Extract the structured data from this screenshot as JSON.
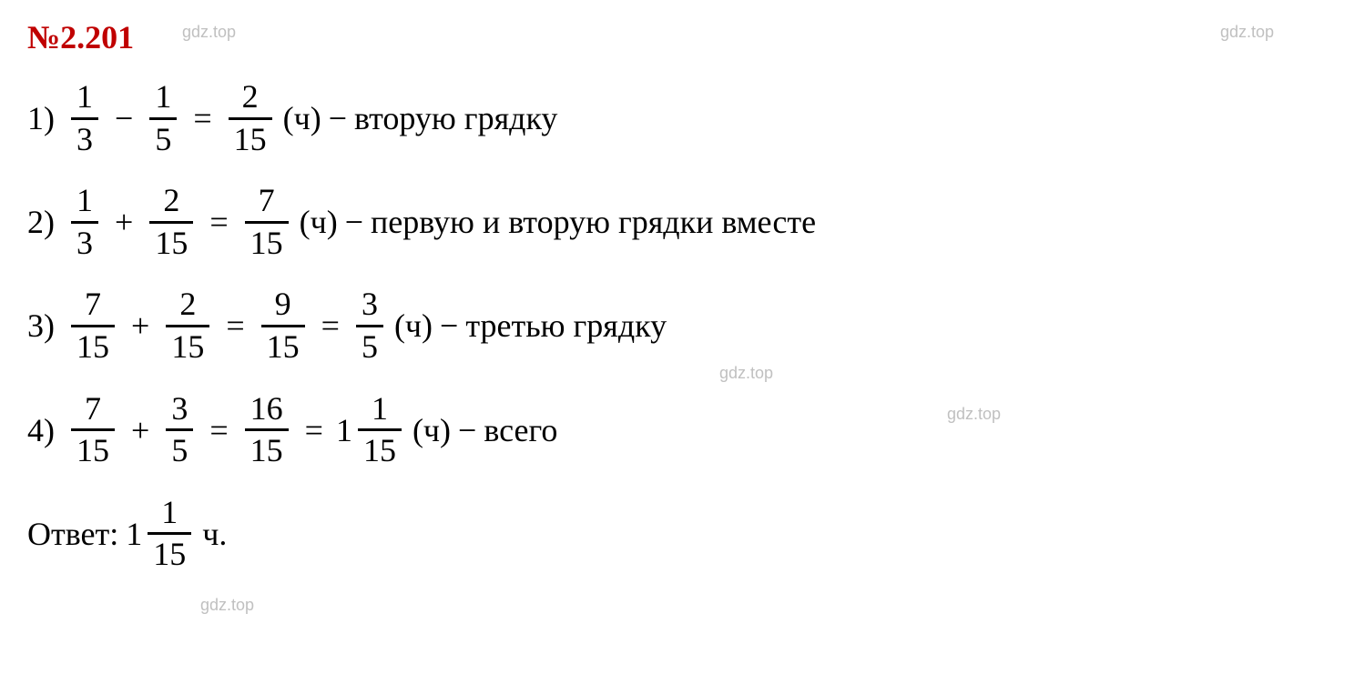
{
  "heading": "№2.201",
  "watermark": "gdz.top",
  "colors": {
    "heading": "#c00000",
    "text": "#000000",
    "watermark": "#c0c0c0",
    "background": "#ffffff",
    "fraction_bar": "#000000"
  },
  "typography": {
    "heading_fontsize": 36,
    "body_fontsize": 36,
    "watermark_fontsize": 18,
    "font_family": "Georgia, Times New Roman, serif"
  },
  "steps": [
    {
      "index": "1)",
      "terms": [
        {
          "num": "1",
          "den": "3"
        },
        {
          "op": "−"
        },
        {
          "num": "1",
          "den": "5"
        },
        {
          "op": "="
        },
        {
          "num": "2",
          "den": "15"
        }
      ],
      "unit": "(ч)",
      "dash": "−",
      "desc": "вторую грядку"
    },
    {
      "index": "2)",
      "terms": [
        {
          "num": "1",
          "den": "3"
        },
        {
          "op": "+"
        },
        {
          "num": "2",
          "den": "15"
        },
        {
          "op": "="
        },
        {
          "num": "7",
          "den": "15"
        }
      ],
      "unit": "(ч)",
      "dash": "−",
      "desc": "первую и вторую грядки вместе"
    },
    {
      "index": "3)",
      "terms": [
        {
          "num": "7",
          "den": "15"
        },
        {
          "op": "+"
        },
        {
          "num": "2",
          "den": "15"
        },
        {
          "op": "="
        },
        {
          "num": "9",
          "den": "15"
        },
        {
          "op": "="
        },
        {
          "num": "3",
          "den": "5"
        }
      ],
      "unit": "(ч)",
      "dash": "−",
      "desc": "третью грядку"
    },
    {
      "index": "4)",
      "terms": [
        {
          "num": "7",
          "den": "15"
        },
        {
          "op": "+"
        },
        {
          "num": "3",
          "den": "5"
        },
        {
          "op": "="
        },
        {
          "num": "16",
          "den": "15"
        },
        {
          "op": "="
        },
        {
          "whole": "1",
          "num": "1",
          "den": "15"
        }
      ],
      "unit": "(ч)",
      "dash": "−",
      "desc": "всего"
    }
  ],
  "answer": {
    "label": "Ответ:",
    "whole": "1",
    "num": "1",
    "den": "15",
    "unit": "ч."
  }
}
